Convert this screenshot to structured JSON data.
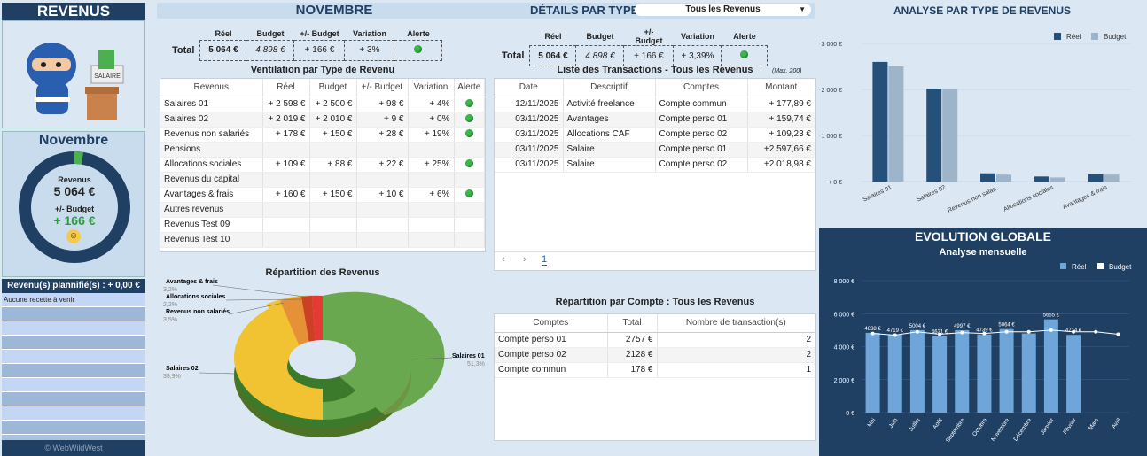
{
  "left": {
    "title": "REVENUS",
    "month": "Novembre",
    "revenus_label": "Revenus",
    "revenus_value": "5 064 €",
    "budget_label": "+/- Budget",
    "budget_value": "+ 166 €",
    "planned": "Revenu(s) plannifié(s) : + 0,00 €",
    "no_recipe": "Aucune recette à venir",
    "copyright": "© WebWildWest",
    "salary_tag": "SALAIRE"
  },
  "center": {
    "title": "NOVEMBRE",
    "total_label": "Total",
    "summary_headers": [
      "Réel",
      "Budget",
      "+/- Budget",
      "Variation",
      "Alerte"
    ],
    "summary": [
      "5 064 €",
      "4 898 €",
      "+ 166 €",
      "+ 3%"
    ],
    "vent_title": "Ventilation par Type de Revenu",
    "vent_headers": [
      "Revenus",
      "Réel",
      "Budget",
      "+/- Budget",
      "Variation",
      "Alerte"
    ],
    "vent_rows": [
      [
        "Salaires 01",
        "+ 2 598 €",
        "+ 2 500 €",
        "+ 98 €",
        "+ 4%",
        "dot"
      ],
      [
        "Salaires 02",
        "+ 2 019 €",
        "+ 2 010 €",
        "+ 9 €",
        "+ 0%",
        "dot"
      ],
      [
        "Revenus non salariés",
        "+ 178 €",
        "+ 150 €",
        "+ 28 €",
        "+ 19%",
        "dot"
      ],
      [
        "Pensions",
        "",
        "",
        "",
        "",
        ""
      ],
      [
        "Allocations sociales",
        "+ 109 €",
        "+ 88 €",
        "+ 22 €",
        "+ 25%",
        "dot"
      ],
      [
        "Revenus du capital",
        "",
        "",
        "",
        "",
        ""
      ],
      [
        "Avantages & frais",
        "+ 160 €",
        "+ 150 €",
        "+ 10 €",
        "+ 6%",
        "dot"
      ],
      [
        "Autres revenus",
        "",
        "",
        "",
        "",
        ""
      ],
      [
        "Revenus Test 09",
        "",
        "",
        "",
        "",
        ""
      ],
      [
        "Revenus Test 10",
        "",
        "",
        "",
        "",
        ""
      ]
    ],
    "pie_title": "Répartition des Revenus",
    "pie_labels": [
      {
        "name": "Avantages & frais",
        "pct": "3,2%"
      },
      {
        "name": "Allocations sociales",
        "pct": "2,2%"
      },
      {
        "name": "Revenus non salariés",
        "pct": "3,5%"
      },
      {
        "name": "Salaires 02",
        "pct": "39,9%"
      },
      {
        "name": "Salaires 01",
        "pct": "51,3%"
      }
    ]
  },
  "details": {
    "title": "DÉTAILS PAR TYPE",
    "select_value": "Tous les Revenus",
    "summary_headers": [
      "Réel",
      "Budget",
      "+/- Budget",
      "Variation",
      "Alerte"
    ],
    "total_label": "Total",
    "summary": [
      "5 064 €",
      "4 898 €",
      "+ 166 €",
      "+ 3,39%"
    ],
    "trans_title": "Liste des Transactions - Tous les Revenus",
    "trans_max": "(Max. 200)",
    "trans_headers": [
      "Date",
      "Descriptif",
      "Comptes",
      "Montant"
    ],
    "trans_rows": [
      [
        "12/11/2025",
        "Activité freelance",
        "Compte commun",
        "+ 177,89 €"
      ],
      [
        "03/11/2025",
        "Avantages",
        "Compte perso 01",
        "+ 159,74 €"
      ],
      [
        "03/11/2025",
        "Allocations CAF",
        "Compte perso 02",
        "+ 109,23 €"
      ],
      [
        "03/11/2025",
        "Salaire",
        "Compte perso 01",
        "+2 597,66 €"
      ],
      [
        "03/11/2025",
        "Salaire",
        "Compte perso 02",
        "+2 018,98 €"
      ]
    ],
    "page": "1",
    "prev": "‹",
    "next": "›",
    "acct_title": "Répartition par Compte : Tous les Revenus",
    "acct_headers": [
      "Comptes",
      "Total",
      "Nombre de transaction(s)"
    ],
    "acct_rows": [
      [
        "Compte perso 01",
        "2757 €",
        "2"
      ],
      [
        "Compte perso 02",
        "2128 €",
        "2"
      ],
      [
        "Compte commun",
        "178 €",
        "1"
      ]
    ]
  },
  "right": {
    "title": "ANALYSE PAR TYPE DE REVENUS",
    "evo_title": "EVOLUTION GLOBALE",
    "evo_sub": "Analyse mensuelle"
  },
  "chart_data": [
    {
      "type": "bar",
      "categories": [
        "Salaires 01",
        "Salaires 02",
        "Revenus non salar...",
        "Allocations sociales",
        "Avantages & frais"
      ],
      "series": [
        {
          "name": "Réel",
          "values": [
            2598,
            2019,
            178,
            109,
            160
          ]
        },
        {
          "name": "Budget",
          "values": [
            2500,
            2010,
            150,
            88,
            150
          ]
        }
      ],
      "yticks": [
        "+ 0 €",
        "+ 1 000 €",
        "+ 2 000 €",
        "+ 3 000 €"
      ],
      "ylim": [
        0,
        3000
      ],
      "legend": "top-right",
      "colors": [
        "#24507a",
        "#9db4c9"
      ]
    },
    {
      "type": "bar",
      "categories": [
        "Mai",
        "Juin",
        "Juillet",
        "Août",
        "Septembre",
        "Octobre",
        "Novembre",
        "Décembre",
        "Janvier",
        "Février",
        "Mars",
        "Avril"
      ],
      "series": [
        {
          "name": "Réel",
          "values": [
            4838,
            4719,
            5004,
            4631,
            4997,
            4739,
            5064,
            4800,
            5655,
            4714,
            null,
            null
          ],
          "labels": [
            "4838 €",
            "4719 €",
            "5004 €",
            "4631 €",
            "4997 €",
            "4739 €",
            "5064 €",
            "",
            "5655 €",
            "4714 €",
            "",
            ""
          ]
        },
        {
          "name": "Budget",
          "values": [
            4800,
            4700,
            4900,
            4750,
            4850,
            4800,
            4898,
            4900,
            5000,
            4900,
            4900,
            4750
          ]
        }
      ],
      "yticks": [
        "0 €",
        "2 000 €",
        "4 000 €",
        "6 000 €",
        "8 000 €"
      ],
      "ylim": [
        0,
        8000
      ],
      "legend": "top-right",
      "colors": [
        "#6ea6d9",
        "#ffffff"
      ]
    }
  ]
}
